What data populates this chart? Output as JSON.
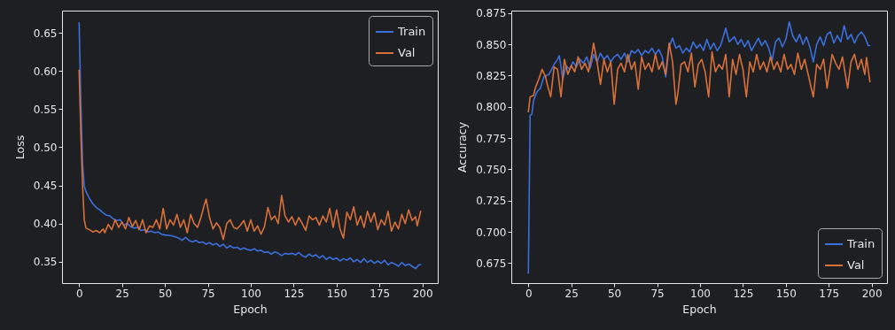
{
  "chart_data": [
    {
      "type": "line",
      "xlabel": "Epoch",
      "ylabel": "Loss",
      "xlim": [
        -9.95,
        208.95
      ],
      "ylim": [
        0.322,
        0.679
      ],
      "xticks": [
        0,
        25,
        50,
        75,
        100,
        125,
        150,
        175,
        200
      ],
      "yticks": [
        0.35,
        {
          "value": 0.4,
          "label": "0.40"
        },
        0.45,
        {
          "value": 0.5,
          "label": "0.50"
        },
        0.55,
        {
          "value": 0.6,
          "label": "0.60"
        },
        0.65
      ],
      "legend": "top right",
      "series": [
        {
          "name": "Train",
          "color": "#3b6fdc",
          "x": [
            0,
            1,
            2,
            3,
            4,
            6,
            8,
            10,
            12,
            14,
            16,
            18,
            20,
            22,
            24,
            26,
            28,
            30,
            32,
            34,
            36,
            38,
            40,
            42,
            44,
            46,
            48,
            50,
            54,
            58,
            60,
            62,
            64,
            66,
            68,
            70,
            72,
            74,
            76,
            78,
            80,
            82,
            84,
            86,
            88,
            90,
            92,
            94,
            96,
            98,
            100,
            102,
            104,
            106,
            108,
            110,
            112,
            114,
            116,
            118,
            120,
            122,
            124,
            126,
            128,
            130,
            132,
            134,
            136,
            138,
            140,
            142,
            144,
            146,
            148,
            150,
            152,
            154,
            156,
            158,
            160,
            162,
            164,
            166,
            168,
            170,
            172,
            174,
            176,
            178,
            180,
            182,
            184,
            186,
            188,
            190,
            192,
            194,
            196,
            198,
            199
          ],
          "values": [
            0.663,
            0.56,
            0.48,
            0.449,
            0.442,
            0.433,
            0.426,
            0.421,
            0.418,
            0.414,
            0.411,
            0.41,
            0.406,
            0.404,
            0.405,
            0.398,
            0.4,
            0.396,
            0.394,
            0.395,
            0.391,
            0.392,
            0.389,
            0.39,
            0.388,
            0.389,
            0.386,
            0.385,
            0.384,
            0.381,
            0.378,
            0.382,
            0.378,
            0.376,
            0.378,
            0.375,
            0.376,
            0.373,
            0.375,
            0.372,
            0.374,
            0.37,
            0.373,
            0.368,
            0.371,
            0.368,
            0.369,
            0.366,
            0.368,
            0.366,
            0.365,
            0.367,
            0.364,
            0.365,
            0.362,
            0.363,
            0.36,
            0.363,
            0.361,
            0.358,
            0.361,
            0.36,
            0.361,
            0.359,
            0.362,
            0.358,
            0.356,
            0.36,
            0.357,
            0.359,
            0.355,
            0.358,
            0.353,
            0.356,
            0.353,
            0.355,
            0.351,
            0.354,
            0.352,
            0.355,
            0.35,
            0.353,
            0.349,
            0.354,
            0.349,
            0.352,
            0.348,
            0.351,
            0.348,
            0.352,
            0.346,
            0.349,
            0.347,
            0.344,
            0.349,
            0.345,
            0.347,
            0.344,
            0.341,
            0.346,
            0.346
          ]
        },
        {
          "name": "Val",
          "color": "#d8703a",
          "x": [
            0,
            1,
            2,
            3,
            4,
            6,
            8,
            10,
            12,
            14,
            15,
            17,
            19,
            21,
            23,
            25,
            27,
            29,
            31,
            33,
            35,
            37,
            39,
            41,
            43,
            45,
            47,
            49,
            51,
            53,
            55,
            57,
            59,
            61,
            63,
            65,
            67,
            69,
            71,
            73,
            74,
            76,
            78,
            80,
            82,
            84,
            86,
            88,
            90,
            92,
            94,
            96,
            98,
            100,
            102,
            104,
            106,
            108,
            110,
            112,
            114,
            116,
            118,
            120,
            122,
            124,
            126,
            128,
            130,
            132,
            134,
            136,
            138,
            140,
            142,
            144,
            146,
            148,
            150,
            152,
            154,
            156,
            158,
            160,
            162,
            164,
            166,
            168,
            170,
            172,
            174,
            176,
            178,
            180,
            182,
            184,
            186,
            188,
            190,
            192,
            194,
            196,
            197,
            199
          ],
          "values": [
            0.601,
            0.52,
            0.45,
            0.405,
            0.394,
            0.392,
            0.389,
            0.391,
            0.388,
            0.393,
            0.388,
            0.399,
            0.392,
            0.405,
            0.395,
            0.402,
            0.393,
            0.408,
            0.396,
            0.404,
            0.392,
            0.405,
            0.388,
            0.397,
            0.395,
            0.405,
            0.393,
            0.42,
            0.393,
            0.405,
            0.398,
            0.412,
            0.395,
            0.405,
            0.388,
            0.412,
            0.4,
            0.395,
            0.408,
            0.425,
            0.432,
            0.408,
            0.393,
            0.401,
            0.395,
            0.379,
            0.4,
            0.405,
            0.395,
            0.393,
            0.398,
            0.404,
            0.39,
            0.405,
            0.39,
            0.397,
            0.386,
            0.396,
            0.421,
            0.405,
            0.41,
            0.4,
            0.437,
            0.41,
            0.402,
            0.409,
            0.398,
            0.408,
            0.4,
            0.391,
            0.41,
            0.405,
            0.408,
            0.398,
            0.41,
            0.402,
            0.42,
            0.395,
            0.418,
            0.393,
            0.381,
            0.415,
            0.405,
            0.422,
            0.398,
            0.41,
            0.395,
            0.416,
            0.402,
            0.414,
            0.392,
            0.405,
            0.398,
            0.416,
            0.39,
            0.402,
            0.393,
            0.412,
            0.4,
            0.418,
            0.404,
            0.409,
            0.397,
            0.416
          ]
        }
      ]
    },
    {
      "type": "line",
      "xlabel": "Epoch",
      "ylabel": "Accuracy",
      "xlim": [
        -9.95,
        208.95
      ],
      "ylim": [
        0.659,
        0.877
      ],
      "xticks": [
        0,
        25,
        50,
        75,
        100,
        125,
        150,
        175,
        200
      ],
      "yticks": [
        0.675,
        {
          "value": 0.7,
          "label": "0.700"
        },
        0.725,
        {
          "value": 0.75,
          "label": "0.750"
        },
        0.775,
        {
          "value": 0.8,
          "label": "0.800"
        },
        0.825,
        {
          "value": 0.85,
          "label": "0.850"
        },
        0.875
      ],
      "legend": "bottom right",
      "series": [
        {
          "name": "Train",
          "color": "#3b6fdc",
          "x": [
            0,
            1,
            2,
            3,
            5,
            7,
            9,
            12,
            15,
            17,
            18,
            19,
            20,
            22,
            24,
            26,
            28,
            30,
            32,
            34,
            36,
            38,
            40,
            42,
            44,
            46,
            48,
            50,
            52,
            54,
            56,
            58,
            60,
            62,
            64,
            66,
            68,
            70,
            72,
            74,
            76,
            78,
            80,
            82,
            84,
            86,
            88,
            90,
            92,
            94,
            96,
            98,
            100,
            102,
            104,
            106,
            108,
            110,
            112,
            115,
            117,
            120,
            122,
            124,
            126,
            128,
            130,
            132,
            134,
            136,
            138,
            140,
            142,
            144,
            146,
            148,
            150,
            152,
            154,
            156,
            158,
            160,
            162,
            164,
            166,
            168,
            170,
            172,
            174,
            176,
            178,
            180,
            182,
            184,
            186,
            188,
            190,
            192,
            194,
            196,
            198,
            199
          ],
          "values": [
            0.667,
            0.793,
            0.794,
            0.805,
            0.812,
            0.815,
            0.824,
            0.826,
            0.834,
            0.838,
            0.841,
            0.832,
            0.822,
            0.833,
            0.83,
            0.836,
            0.832,
            0.838,
            0.835,
            0.84,
            0.831,
            0.842,
            0.836,
            0.843,
            0.838,
            0.841,
            0.836,
            0.84,
            0.842,
            0.838,
            0.843,
            0.836,
            0.845,
            0.843,
            0.846,
            0.841,
            0.845,
            0.843,
            0.847,
            0.842,
            0.846,
            0.84,
            0.824,
            0.848,
            0.855,
            0.847,
            0.849,
            0.843,
            0.847,
            0.844,
            0.852,
            0.847,
            0.85,
            0.845,
            0.854,
            0.846,
            0.851,
            0.845,
            0.849,
            0.863,
            0.852,
            0.856,
            0.85,
            0.854,
            0.848,
            0.853,
            0.845,
            0.85,
            0.855,
            0.849,
            0.853,
            0.847,
            0.837,
            0.852,
            0.855,
            0.848,
            0.854,
            0.868,
            0.857,
            0.852,
            0.858,
            0.85,
            0.856,
            0.848,
            0.836,
            0.85,
            0.856,
            0.849,
            0.858,
            0.86,
            0.851,
            0.857,
            0.852,
            0.865,
            0.854,
            0.858,
            0.851,
            0.857,
            0.86,
            0.856,
            0.849,
            0.849
          ]
        },
        {
          "name": "Val",
          "color": "#d8703a",
          "x": [
            0,
            1,
            3,
            4,
            6,
            8,
            10,
            11,
            13,
            15,
            17,
            19,
            21,
            23,
            25,
            27,
            29,
            31,
            33,
            35,
            37,
            38,
            40,
            42,
            44,
            46,
            48,
            50,
            52,
            54,
            56,
            58,
            60,
            62,
            64,
            66,
            68,
            70,
            72,
            74,
            76,
            78,
            80,
            82,
            84,
            86,
            87,
            89,
            91,
            93,
            95,
            97,
            99,
            101,
            103,
            105,
            107,
            109,
            111,
            113,
            115,
            117,
            119,
            121,
            123,
            125,
            127,
            129,
            131,
            133,
            135,
            137,
            139,
            141,
            143,
            145,
            147,
            149,
            151,
            153,
            155,
            157,
            159,
            161,
            163,
            166,
            168,
            170,
            172,
            174,
            177,
            179,
            181,
            183,
            186,
            188,
            190,
            192,
            194,
            196,
            197,
            199
          ],
          "values": [
            0.796,
            0.808,
            0.809,
            0.815,
            0.822,
            0.83,
            0.824,
            0.818,
            0.808,
            0.832,
            0.83,
            0.808,
            0.838,
            0.826,
            0.833,
            0.828,
            0.84,
            0.83,
            0.835,
            0.828,
            0.842,
            0.851,
            0.836,
            0.818,
            0.838,
            0.828,
            0.836,
            0.802,
            0.83,
            0.835,
            0.828,
            0.842,
            0.83,
            0.836,
            0.814,
            0.84,
            0.83,
            0.835,
            0.828,
            0.842,
            0.83,
            0.836,
            0.826,
            0.851,
            0.836,
            0.802,
            0.81,
            0.834,
            0.836,
            0.828,
            0.843,
            0.816,
            0.834,
            0.838,
            0.828,
            0.808,
            0.844,
            0.828,
            0.834,
            0.83,
            0.842,
            0.808,
            0.838,
            0.826,
            0.842,
            0.83,
            0.808,
            0.836,
            0.828,
            0.842,
            0.83,
            0.836,
            0.828,
            0.84,
            0.83,
            0.836,
            0.828,
            0.842,
            0.83,
            0.834,
            0.826,
            0.843,
            0.83,
            0.838,
            0.826,
            0.808,
            0.834,
            0.83,
            0.838,
            0.815,
            0.842,
            0.835,
            0.83,
            0.84,
            0.815,
            0.836,
            0.842,
            0.83,
            0.838,
            0.826,
            0.8395,
            0.82
          ]
        }
      ]
    }
  ]
}
